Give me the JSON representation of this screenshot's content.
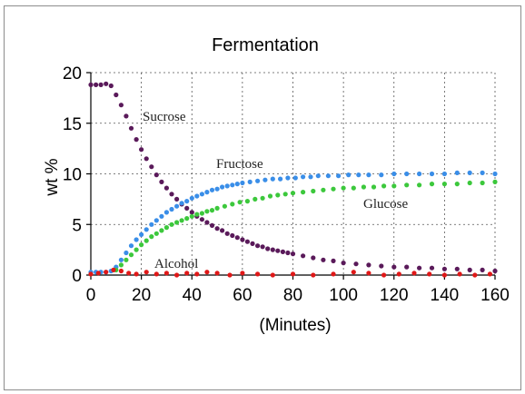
{
  "chart_data": {
    "type": "scatter",
    "title": "Fermentation",
    "xlabel": "(Minutes)",
    "ylabel": "wt %",
    "xlim": [
      0,
      160
    ],
    "ylim": [
      0,
      20
    ],
    "xticks": [
      0,
      20,
      40,
      60,
      80,
      100,
      120,
      140,
      160
    ],
    "yticks": [
      0,
      5,
      10,
      15,
      20
    ],
    "grid": true,
    "colors": {
      "Sucrose": "#5a1a5a",
      "Fructose": "#3a8ee8",
      "Glucose": "#3cc83c",
      "Alcohol": "#e01818"
    },
    "series": [
      {
        "name": "Sucrose",
        "x": [
          0,
          2,
          4,
          6,
          8,
          10,
          12,
          14,
          16,
          18,
          20,
          22,
          24,
          26,
          28,
          30,
          32,
          34,
          36,
          38,
          40,
          42,
          44,
          46,
          48,
          50,
          52,
          54,
          56,
          58,
          60,
          62,
          64,
          66,
          68,
          70,
          72,
          74,
          76,
          78,
          80,
          84,
          88,
          92,
          96,
          100,
          105,
          110,
          115,
          120,
          125,
          130,
          135,
          140,
          145,
          150,
          155,
          160
        ],
        "y": [
          18.8,
          18.8,
          18.8,
          18.9,
          18.7,
          17.8,
          16.8,
          15.7,
          14.5,
          13.4,
          12.4,
          11.5,
          10.7,
          9.9,
          9.2,
          8.6,
          8.0,
          7.5,
          7.0,
          6.6,
          6.2,
          5.8,
          5.5,
          5.2,
          4.9,
          4.6,
          4.4,
          4.1,
          3.9,
          3.7,
          3.5,
          3.3,
          3.1,
          2.9,
          2.8,
          2.6,
          2.5,
          2.4,
          2.3,
          2.2,
          2.1,
          1.9,
          1.7,
          1.5,
          1.4,
          1.2,
          1.1,
          1.0,
          0.9,
          0.8,
          0.8,
          0.7,
          0.7,
          0.6,
          0.6,
          0.5,
          0.5,
          0.4
        ]
      },
      {
        "name": "Fructose",
        "x": [
          0,
          2,
          4,
          6,
          8,
          10,
          12,
          14,
          16,
          18,
          20,
          22,
          24,
          26,
          28,
          30,
          32,
          34,
          36,
          38,
          40,
          42,
          44,
          46,
          48,
          50,
          52,
          54,
          56,
          58,
          60,
          63,
          66,
          69,
          72,
          75,
          78,
          81,
          84,
          87,
          90,
          94,
          98,
          102,
          106,
          110,
          115,
          120,
          125,
          130,
          135,
          140,
          145,
          150,
          155,
          160
        ],
        "y": [
          0.3,
          0.3,
          0.3,
          0.3,
          0.4,
          0.8,
          1.5,
          2.2,
          2.9,
          3.5,
          4.0,
          4.5,
          5.0,
          5.4,
          5.8,
          6.2,
          6.5,
          6.8,
          7.1,
          7.3,
          7.6,
          7.8,
          8.0,
          8.2,
          8.4,
          8.5,
          8.7,
          8.8,
          8.9,
          9.0,
          9.1,
          9.2,
          9.3,
          9.4,
          9.5,
          9.5,
          9.6,
          9.6,
          9.7,
          9.7,
          9.8,
          9.8,
          9.8,
          9.9,
          9.9,
          9.9,
          9.9,
          10.0,
          10.0,
          10.0,
          10.0,
          10.0,
          10.1,
          10.1,
          10.1,
          10.0
        ]
      },
      {
        "name": "Glucose",
        "x": [
          10,
          12,
          14,
          16,
          18,
          20,
          22,
          24,
          26,
          28,
          30,
          32,
          34,
          36,
          38,
          40,
          42,
          44,
          46,
          48,
          50,
          53,
          56,
          59,
          62,
          65,
          68,
          71,
          74,
          77,
          80,
          84,
          88,
          92,
          96,
          100,
          104,
          108,
          112,
          116,
          120,
          125,
          130,
          135,
          140,
          145,
          150,
          155,
          160
        ],
        "y": [
          0.5,
          1.0,
          1.5,
          2.0,
          2.5,
          3.0,
          3.4,
          3.8,
          4.1,
          4.4,
          4.7,
          5.0,
          5.2,
          5.4,
          5.6,
          5.8,
          6.0,
          6.1,
          6.3,
          6.4,
          6.6,
          6.8,
          7.0,
          7.2,
          7.3,
          7.5,
          7.6,
          7.8,
          7.9,
          8.0,
          8.1,
          8.2,
          8.3,
          8.4,
          8.5,
          8.6,
          8.6,
          8.7,
          8.7,
          8.8,
          8.8,
          8.9,
          8.9,
          9.0,
          9.0,
          9.0,
          9.1,
          9.1,
          9.2
        ]
      },
      {
        "name": "Alcohol",
        "x": [
          0,
          3,
          6,
          9,
          12,
          15,
          18,
          22,
          26,
          30,
          34,
          38,
          42,
          46,
          50,
          55,
          60,
          66,
          72,
          80,
          88,
          96,
          104,
          110,
          116,
          122,
          128,
          134,
          140,
          146,
          152,
          158
        ],
        "y": [
          0.1,
          0.2,
          0.3,
          0.5,
          0.4,
          0.2,
          0.1,
          0.3,
          0.1,
          0.2,
          0.0,
          0.2,
          0.1,
          0.3,
          0.2,
          0.0,
          0.2,
          0.1,
          0.0,
          0.1,
          0.0,
          0.1,
          0.3,
          0.2,
          0.0,
          0.1,
          0.2,
          0.1,
          0.0,
          0.1,
          0.0,
          0.1
        ]
      }
    ]
  }
}
